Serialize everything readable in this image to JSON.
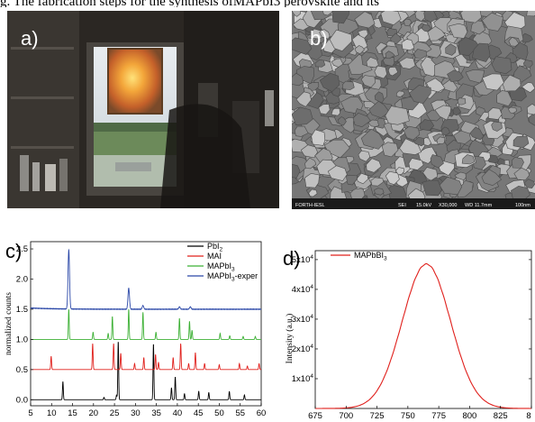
{
  "caption": "g. The fabrication steps for the synthesis ofMAPbI3 perovskite and its",
  "panels": {
    "a": {
      "label": "a)"
    },
    "b": {
      "label": "b)",
      "scale_bar": [
        "FORTH-IESL",
        "SEI",
        "15.0kV",
        "X30,000",
        "WD 11.7mm",
        "100nm"
      ]
    },
    "c": {
      "label": "c)"
    },
    "d": {
      "label": "d)"
    }
  },
  "chart_data": [
    {
      "type": "line",
      "panel": "c",
      "ylabel": "normalized counts",
      "xlim": [
        5,
        60
      ],
      "ylim": [
        -0.1,
        2.62
      ],
      "xticks": [
        5,
        10,
        15,
        20,
        25,
        30,
        35,
        40,
        45,
        50,
        55,
        60
      ],
      "yticks": [
        "0.0",
        "0.5",
        "1.0",
        "1.5",
        "2.0",
        "2.5"
      ],
      "legend_position": "top-right",
      "series": [
        {
          "name": "PbI2",
          "legend_main": "PbI",
          "legend_sub": "2",
          "legend_rest": "",
          "color": "#000000",
          "baseline": 0.0,
          "peaks": [
            [
              12.7,
              0.3
            ],
            [
              22.5,
              0.04
            ],
            [
              25.5,
              0.08
            ],
            [
              25.9,
              0.97
            ],
            [
              34.3,
              0.93
            ],
            [
              38.6,
              0.2
            ],
            [
              39.5,
              0.38
            ],
            [
              41.7,
              0.1
            ],
            [
              45.1,
              0.14
            ],
            [
              47.5,
              0.12
            ],
            [
              52.4,
              0.14
            ],
            [
              56.0,
              0.08
            ]
          ]
        },
        {
          "name": "MAI",
          "legend_main": "MAI",
          "legend_sub": "",
          "legend_rest": "",
          "color": "#e0201c",
          "baseline": 0.5,
          "peaks": [
            [
              9.9,
              0.22
            ],
            [
              19.8,
              0.43
            ],
            [
              24.8,
              0.43
            ],
            [
              26.5,
              0.27
            ],
            [
              29.8,
              0.1
            ],
            [
              32.0,
              0.2
            ],
            [
              34.8,
              0.25
            ],
            [
              35.5,
              0.12
            ],
            [
              39.0,
              0.2
            ],
            [
              40.8,
              0.43
            ],
            [
              42.7,
              0.1
            ],
            [
              44.3,
              0.28
            ],
            [
              46.5,
              0.1
            ],
            [
              50.0,
              0.08
            ],
            [
              54.8,
              0.1
            ],
            [
              56.7,
              0.06
            ],
            [
              59.5,
              0.1
            ]
          ]
        },
        {
          "name": "MAPbI3",
          "legend_main": "MAPbI",
          "legend_sub": "3",
          "legend_rest": "",
          "color": "#3cb034",
          "baseline": 1.0,
          "peaks": [
            [
              14.1,
              0.5
            ],
            [
              19.9,
              0.12
            ],
            [
              23.5,
              0.1
            ],
            [
              24.5,
              0.38
            ],
            [
              28.4,
              0.5
            ],
            [
              31.8,
              0.45
            ],
            [
              34.9,
              0.12
            ],
            [
              40.5,
              0.35
            ],
            [
              42.9,
              0.3
            ],
            [
              43.5,
              0.15
            ],
            [
              50.2,
              0.1
            ],
            [
              52.5,
              0.06
            ],
            [
              55.7,
              0.05
            ],
            [
              58.6,
              0.05
            ]
          ]
        },
        {
          "name": "MAPbI3-exper",
          "legend_main": "MAPbI",
          "legend_sub": "3",
          "legend_rest": "-exper",
          "color": "#2b48a8",
          "baseline": 1.5,
          "peaks": [
            [
              14.1,
              0.98
            ],
            [
              28.4,
              0.35
            ],
            [
              31.8,
              0.06
            ],
            [
              40.5,
              0.04
            ],
            [
              43.1,
              0.04
            ]
          ]
        }
      ]
    },
    {
      "type": "line",
      "panel": "d",
      "ylabel": "Intensity (a.u.)",
      "xlim": [
        675,
        850
      ],
      "ylim": [
        0,
        53000
      ],
      "xticks": [
        "675",
        "700",
        "725",
        "750",
        "775",
        "800",
        "825",
        "8"
      ],
      "ytick_labels": [
        {
          "value": 10000,
          "mant": "1x10",
          "exp": "4"
        },
        {
          "value": 20000,
          "mant": "2x10",
          "exp": "4"
        },
        {
          "value": 30000,
          "mant": "3x10",
          "exp": "4"
        },
        {
          "value": 40000,
          "mant": "4x10",
          "exp": "4"
        },
        {
          "value": 50000,
          "mant": "5x10",
          "exp": "4"
        }
      ],
      "legend_position": "top-left",
      "series": [
        {
          "name": "MAPbBI3",
          "legend_main": "MAPbBI",
          "legend_sub": "3",
          "color": "#e0201c",
          "peak_center": 765,
          "peak_height": 48500,
          "fwhm": 46
        }
      ]
    }
  ]
}
